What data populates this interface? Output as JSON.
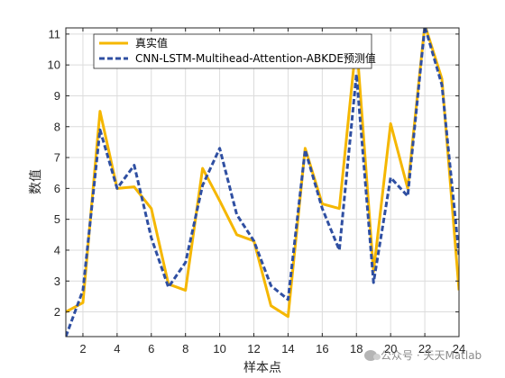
{
  "chart_data": {
    "type": "line",
    "title": "",
    "xlabel": "样本点",
    "ylabel": "数值",
    "xlim": [
      1,
      24
    ],
    "ylim": [
      1.2,
      11.2
    ],
    "xticks": [
      2,
      4,
      6,
      8,
      10,
      12,
      14,
      16,
      18,
      20,
      22,
      24
    ],
    "yticks": [
      2,
      3,
      4,
      5,
      6,
      7,
      8,
      9,
      10,
      11
    ],
    "grid": true,
    "legend_position": "top-left",
    "x": [
      1,
      2,
      3,
      4,
      5,
      6,
      7,
      8,
      9,
      10,
      11,
      12,
      13,
      14,
      15,
      16,
      17,
      18,
      19,
      20,
      21,
      22,
      23,
      24
    ],
    "series": [
      {
        "name": "真实值",
        "color": "#F5B700",
        "style": "solid",
        "values": [
          2.0,
          2.3,
          8.5,
          6.0,
          6.05,
          5.35,
          2.9,
          2.7,
          6.65,
          5.6,
          4.5,
          4.3,
          2.2,
          1.85,
          7.3,
          5.5,
          5.35,
          10.8,
          3.3,
          8.1,
          6.0,
          11.3,
          9.55,
          2.7
        ]
      },
      {
        "name": "CNN-LSTM-Multihead-Attention-ABKDE预测值",
        "color": "#2F4FA2",
        "style": "dashed",
        "values": [
          1.2,
          2.7,
          7.9,
          6.0,
          6.75,
          4.4,
          2.8,
          3.6,
          6.1,
          7.3,
          5.15,
          4.3,
          2.85,
          2.4,
          7.25,
          5.35,
          4.0,
          9.7,
          2.95,
          6.35,
          5.75,
          11.25,
          9.35,
          3.85
        ]
      }
    ]
  },
  "watermark": {
    "text": "公众号 · 天天Matlab",
    "icon": "wechat-icon"
  }
}
